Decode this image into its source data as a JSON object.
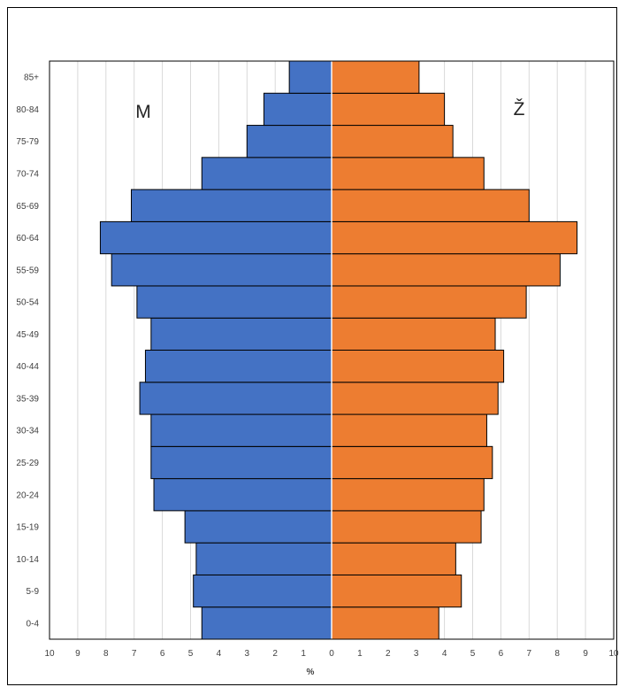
{
  "chart_data": {
    "type": "bar",
    "orientation": "horizontal",
    "layout": "population-pyramid",
    "categories": [
      "0-4",
      "5-9",
      "10-14",
      "15-19",
      "20-24",
      "25-29",
      "30-34",
      "35-39",
      "40-44",
      "45-49",
      "50-54",
      "55-59",
      "60-64",
      "65-69",
      "70-74",
      "75-79",
      "80-84",
      "85+"
    ],
    "series": [
      {
        "name": "M",
        "side": "left",
        "color": "#4472C4",
        "values": [
          4.6,
          4.9,
          4.8,
          5.2,
          6.3,
          6.4,
          6.4,
          6.8,
          6.6,
          6.4,
          6.9,
          7.8,
          8.2,
          7.1,
          4.6,
          3.0,
          2.4,
          1.5
        ]
      },
      {
        "name": "Ž",
        "side": "right",
        "color": "#ED7D31",
        "values": [
          3.8,
          4.6,
          4.4,
          5.3,
          5.4,
          5.7,
          5.5,
          5.9,
          6.1,
          5.8,
          6.9,
          8.1,
          8.7,
          7.0,
          5.4,
          4.3,
          4.0,
          3.1
        ]
      }
    ],
    "xlabel": "%",
    "ylabel": "",
    "xlim": [
      -10,
      10
    ],
    "x_tick_values": [
      -10,
      -9,
      -8,
      -7,
      -6,
      -5,
      -4,
      -3,
      -2,
      -1,
      0,
      1,
      2,
      3,
      4,
      5,
      6,
      7,
      8,
      9,
      10
    ],
    "x_tick_labels": [
      "10",
      "9",
      "8",
      "7",
      "6",
      "5",
      "4",
      "3",
      "2",
      "1",
      "0",
      "1",
      "2",
      "3",
      "4",
      "5",
      "6",
      "7",
      "8",
      "9",
      "10"
    ],
    "grid": "vertical",
    "legend": "none"
  }
}
